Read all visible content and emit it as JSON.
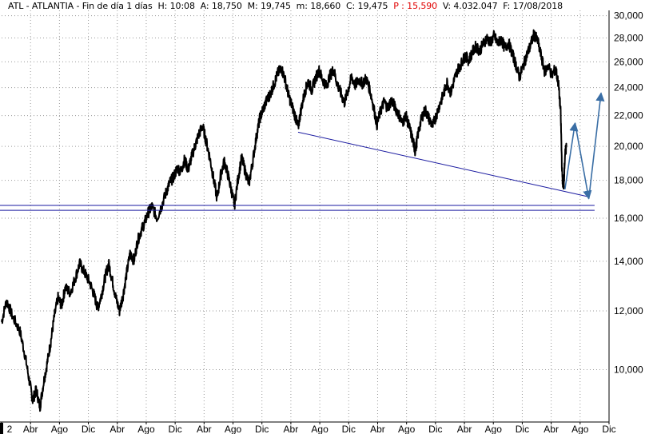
{
  "header": {
    "ticker": "ATL",
    "name": "ATLANTIA",
    "interval": "Fin de día 1 días",
    "h": "H: 10:08",
    "a": "A: 18,750",
    "m": "M: 19,745",
    "min": "m: 18,660",
    "c": "C: 19,475",
    "p": "P : 15,590",
    "v": "V: 4.032.047",
    "f": "F: 17/08/2018"
  },
  "chart_data": {
    "type": "line",
    "title": "ATL - ATLANTIA",
    "ylim": [
      8500,
      30500
    ],
    "y_ticks": [
      10000,
      12000,
      14000,
      16000,
      18000,
      20000,
      22000,
      24000,
      26000,
      28000,
      30000
    ],
    "y_tick_labels": [
      "10,000",
      "12,000",
      "14,000",
      "16,000",
      "18,000",
      "20,000",
      "22,000",
      "24,000",
      "26,000",
      "28,000",
      "30,000"
    ],
    "x_tick_labels": [
      "2",
      "Abr",
      "Ago",
      "Dic",
      "Abr",
      "Ago",
      "Dic",
      "Abr",
      "Ago",
      "Dic",
      "Abr",
      "Ago",
      "Dic",
      "Abr",
      "Ago",
      "Dic",
      "Abr",
      "Ago",
      "Dic",
      "Abr",
      "Ago",
      "Dic"
    ],
    "x_range_months": [
      0,
      84
    ],
    "series": [
      {
        "values": [
          [
            0,
            11600
          ],
          [
            0.7,
            12400
          ],
          [
            1.5,
            11800
          ],
          [
            2.5,
            11300
          ],
          [
            3.2,
            10500
          ],
          [
            3.8,
            9700
          ],
          [
            4.3,
            9100
          ],
          [
            4.8,
            9400
          ],
          [
            5.3,
            8900
          ],
          [
            5.8,
            9600
          ],
          [
            6.3,
            10200
          ],
          [
            6.8,
            10900
          ],
          [
            7.3,
            11800
          ],
          [
            7.8,
            12500
          ],
          [
            8.3,
            12200
          ],
          [
            8.8,
            12900
          ],
          [
            9.5,
            12700
          ],
          [
            10.2,
            13300
          ],
          [
            10.8,
            13900
          ],
          [
            11.5,
            13500
          ],
          [
            12.2,
            13100
          ],
          [
            12.8,
            12600
          ],
          [
            13.3,
            12100
          ],
          [
            13.8,
            12600
          ],
          [
            14.3,
            13300
          ],
          [
            14.8,
            13900
          ],
          [
            15.3,
            13200
          ],
          [
            15.8,
            12500
          ],
          [
            16.3,
            12000
          ],
          [
            16.8,
            12600
          ],
          [
            17.3,
            13500
          ],
          [
            17.8,
            14400
          ],
          [
            18.3,
            14000
          ],
          [
            18.8,
            14900
          ],
          [
            19.3,
            15400
          ],
          [
            19.8,
            15800
          ],
          [
            20.3,
            16300
          ],
          [
            20.8,
            16600
          ],
          [
            21.5,
            16000
          ],
          [
            22.2,
            16700
          ],
          [
            22.8,
            17400
          ],
          [
            23.3,
            17900
          ],
          [
            23.8,
            18200
          ],
          [
            24.3,
            18700
          ],
          [
            24.8,
            18500
          ],
          [
            25.3,
            19200
          ],
          [
            25.8,
            18600
          ],
          [
            26.3,
            19400
          ],
          [
            26.8,
            20100
          ],
          [
            27.3,
            20800
          ],
          [
            27.8,
            21300
          ],
          [
            28.3,
            20300
          ],
          [
            28.8,
            19300
          ],
          [
            29.3,
            18100
          ],
          [
            29.8,
            17000
          ],
          [
            30.3,
            18300
          ],
          [
            30.8,
            19100
          ],
          [
            31.3,
            18300
          ],
          [
            31.8,
            17400
          ],
          [
            32.2,
            16650
          ],
          [
            32.7,
            18100
          ],
          [
            33.2,
            19300
          ],
          [
            33.7,
            18500
          ],
          [
            34.2,
            17800
          ],
          [
            34.7,
            19000
          ],
          [
            35.2,
            20500
          ],
          [
            35.7,
            21800
          ],
          [
            36.2,
            22500
          ],
          [
            36.7,
            23100
          ],
          [
            37.2,
            23600
          ],
          [
            37.7,
            24300
          ],
          [
            38.2,
            25100
          ],
          [
            38.7,
            25500
          ],
          [
            39.2,
            24600
          ],
          [
            39.7,
            23400
          ],
          [
            40.2,
            22600
          ],
          [
            40.7,
            21800
          ],
          [
            41.0,
            21200
          ],
          [
            41.4,
            22400
          ],
          [
            41.9,
            23600
          ],
          [
            42.4,
            24500
          ],
          [
            42.9,
            23800
          ],
          [
            43.4,
            24700
          ],
          [
            43.9,
            25300
          ],
          [
            44.4,
            24600
          ],
          [
            44.9,
            24100
          ],
          [
            45.4,
            24900
          ],
          [
            45.9,
            25400
          ],
          [
            46.4,
            24300
          ],
          [
            46.9,
            23600
          ],
          [
            47.4,
            22900
          ],
          [
            47.9,
            23800
          ],
          [
            48.4,
            24800
          ],
          [
            48.9,
            24200
          ],
          [
            49.4,
            24600
          ],
          [
            49.9,
            24300
          ],
          [
            50.4,
            24700
          ],
          [
            50.9,
            23900
          ],
          [
            51.4,
            22700
          ],
          [
            51.9,
            21400
          ],
          [
            52.4,
            22300
          ],
          [
            52.9,
            23000
          ],
          [
            53.4,
            22500
          ],
          [
            53.9,
            23100
          ],
          [
            54.4,
            22600
          ],
          [
            54.9,
            22100
          ],
          [
            55.4,
            21500
          ],
          [
            55.9,
            22000
          ],
          [
            56.4,
            21200
          ],
          [
            56.9,
            20300
          ],
          [
            57.2,
            19700
          ],
          [
            57.6,
            20800
          ],
          [
            58.1,
            21900
          ],
          [
            58.6,
            22400
          ],
          [
            59.1,
            21800
          ],
          [
            59.6,
            21300
          ],
          [
            60.1,
            22000
          ],
          [
            60.6,
            22800
          ],
          [
            61.1,
            23500
          ],
          [
            61.6,
            24400
          ],
          [
            62.1,
            23600
          ],
          [
            62.6,
            24600
          ],
          [
            63.1,
            25400
          ],
          [
            63.6,
            25900
          ],
          [
            64.1,
            26500
          ],
          [
            64.6,
            26100
          ],
          [
            65.1,
            26800
          ],
          [
            65.6,
            27300
          ],
          [
            66.1,
            26900
          ],
          [
            66.6,
            27500
          ],
          [
            67.1,
            28000
          ],
          [
            67.6,
            27600
          ],
          [
            68.1,
            28200
          ],
          [
            68.6,
            27500
          ],
          [
            69.1,
            27900
          ],
          [
            69.6,
            27100
          ],
          [
            70.1,
            27600
          ],
          [
            70.6,
            26700
          ],
          [
            71.1,
            25800
          ],
          [
            71.6,
            24800
          ],
          [
            72.1,
            25600
          ],
          [
            72.6,
            26500
          ],
          [
            73.1,
            27300
          ],
          [
            73.6,
            28300
          ],
          [
            74.1,
            27800
          ],
          [
            74.6,
            26500
          ],
          [
            75.1,
            25200
          ],
          [
            75.6,
            25700
          ],
          [
            76.1,
            24900
          ],
          [
            76.6,
            25500
          ],
          [
            77.0,
            24300
          ],
          [
            77.3,
            22300
          ],
          [
            77.5,
            18500
          ],
          [
            77.7,
            17400
          ],
          [
            77.9,
            19400
          ],
          [
            78.1,
            20000
          ]
        ]
      }
    ],
    "lines": [
      {
        "from": [
          41.0,
          20900
        ],
        "to": [
          81.2,
          17100
        ],
        "color": "#1a1aa0"
      },
      {
        "from": [
          -1,
          16650
        ],
        "to": [
          82,
          16650
        ],
        "color": "#1a1aa0"
      },
      {
        "from": [
          -1,
          16400
        ],
        "to": [
          82,
          16400
        ],
        "color": "#1a1aa0"
      }
    ],
    "arrows": [
      {
        "points": [
          [
            77.9,
            17500
          ],
          [
            79.3,
            21500
          ]
        ],
        "color": "#3a6ea5"
      },
      {
        "points": [
          [
            79.3,
            21500
          ],
          [
            81.2,
            17000
          ]
        ],
        "color": "#3a6ea5"
      },
      {
        "points": [
          [
            81.2,
            17000
          ],
          [
            82.9,
            23600
          ]
        ],
        "color": "#3a6ea5"
      }
    ],
    "grid": true,
    "yscale": "log"
  }
}
